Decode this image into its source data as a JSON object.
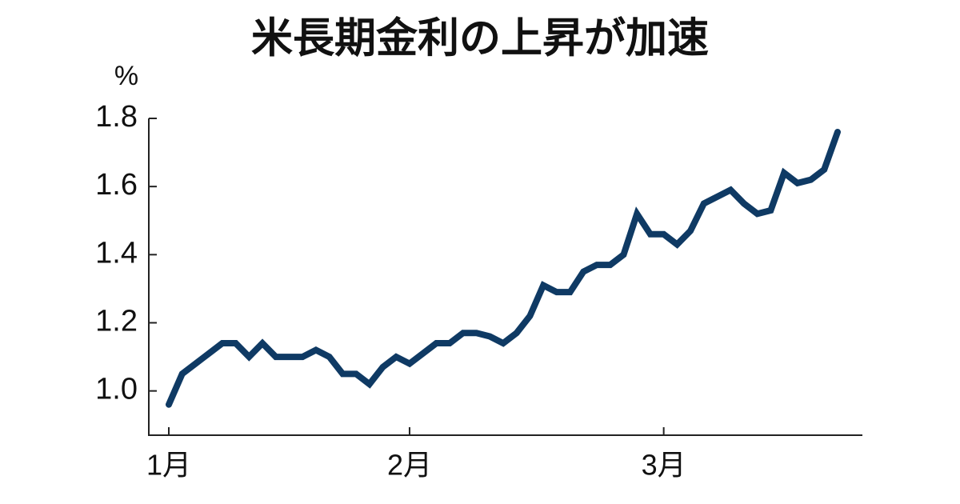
{
  "chart_data": {
    "type": "line",
    "title": "米長期金利の上昇が加速",
    "y_label": "%",
    "categories": [
      "1月",
      null,
      null,
      null,
      null,
      null,
      null,
      null,
      null,
      null,
      null,
      null,
      null,
      null,
      null,
      null,
      null,
      null,
      "2月",
      null,
      null,
      null,
      null,
      null,
      null,
      null,
      null,
      null,
      null,
      null,
      null,
      null,
      null,
      null,
      null,
      null,
      null,
      "3月",
      null,
      null,
      null,
      null,
      null,
      null,
      null,
      null,
      null,
      null,
      null,
      null,
      null
    ],
    "series": [
      {
        "name": "米長期金利",
        "color": "#0f3a64",
        "values": [
          0.96,
          1.05,
          1.08,
          1.11,
          1.14,
          1.14,
          1.1,
          1.14,
          1.1,
          1.1,
          1.1,
          1.12,
          1.1,
          1.05,
          1.05,
          1.02,
          1.07,
          1.1,
          1.08,
          1.11,
          1.14,
          1.14,
          1.17,
          1.17,
          1.16,
          1.14,
          1.17,
          1.22,
          1.31,
          1.29,
          1.29,
          1.35,
          1.37,
          1.37,
          1.4,
          1.52,
          1.46,
          1.46,
          1.43,
          1.47,
          1.55,
          1.57,
          1.59,
          1.55,
          1.52,
          1.53,
          1.64,
          1.61,
          1.62,
          1.65,
          1.76
        ]
      }
    ],
    "ylim": [
      0.87,
      1.8
    ],
    "yticks": [
      {
        "value": 1.0,
        "label": "1.0"
      },
      1.2,
      1.4,
      1.6,
      1.8
    ]
  }
}
